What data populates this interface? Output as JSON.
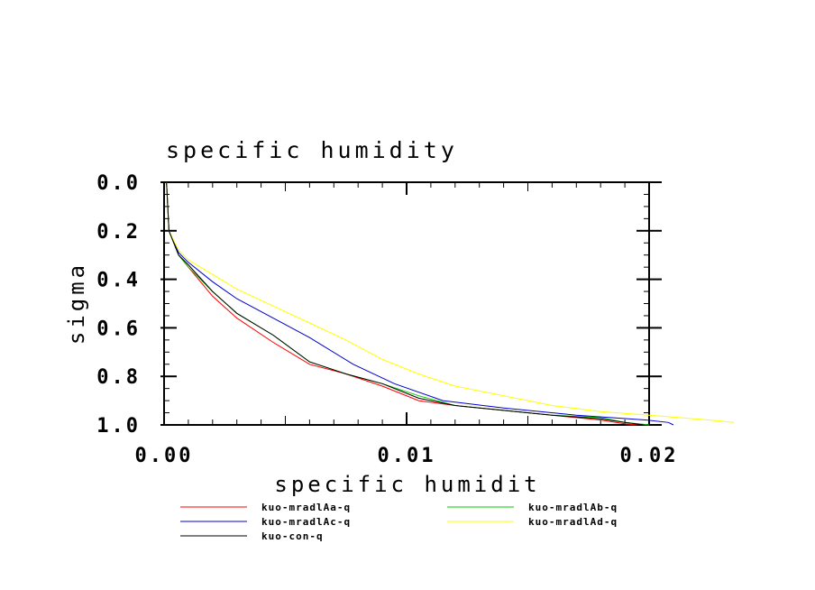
{
  "chart_data": {
    "type": "line",
    "title": "specific humidity",
    "xlabel": "specific humidit",
    "ylabel": "sigma",
    "xlim": [
      0,
      0.02
    ],
    "ylim": [
      1.0,
      0.0
    ],
    "x_ticks": [
      {
        "value": 0.0,
        "label": "0.00"
      },
      {
        "value": 0.01,
        "label": "0.01"
      },
      {
        "value": 0.02,
        "label": "0.02"
      }
    ],
    "y_ticks": [
      {
        "value": 0.0,
        "label": "0.0"
      },
      {
        "value": 0.2,
        "label": "0.2"
      },
      {
        "value": 0.4,
        "label": "0.4"
      },
      {
        "value": 0.6,
        "label": "0.6"
      },
      {
        "value": 0.8,
        "label": "0.8"
      },
      {
        "value": 1.0,
        "label": "1.0"
      }
    ],
    "grid": false,
    "legend_position": "bottom",
    "series": [
      {
        "name": "kuo-mradlAa-q",
        "color": "#ff0000",
        "points": [
          [
            0.0001,
            0.0
          ],
          [
            0.0002,
            0.2
          ],
          [
            0.0006,
            0.3
          ],
          [
            0.001,
            0.35
          ],
          [
            0.002,
            0.47
          ],
          [
            0.003,
            0.56
          ],
          [
            0.0045,
            0.66
          ],
          [
            0.006,
            0.75
          ],
          [
            0.0075,
            0.79
          ],
          [
            0.009,
            0.84
          ],
          [
            0.0105,
            0.9
          ],
          [
            0.012,
            0.92
          ],
          [
            0.014,
            0.94
          ],
          [
            0.016,
            0.96
          ],
          [
            0.018,
            0.98
          ],
          [
            0.019,
            0.995
          ],
          [
            0.0195,
            1.0
          ]
        ]
      },
      {
        "name": "kuo-mradlAb-q",
        "color": "#00cc00",
        "points": [
          [
            0.0001,
            0.0
          ],
          [
            0.0002,
            0.2
          ],
          [
            0.0006,
            0.3
          ],
          [
            0.001,
            0.35
          ],
          [
            0.002,
            0.45
          ],
          [
            0.003,
            0.54
          ],
          [
            0.0045,
            0.63
          ],
          [
            0.006,
            0.74
          ],
          [
            0.0075,
            0.79
          ],
          [
            0.009,
            0.83
          ],
          [
            0.0105,
            0.88
          ],
          [
            0.012,
            0.92
          ],
          [
            0.014,
            0.94
          ],
          [
            0.016,
            0.96
          ],
          [
            0.018,
            0.97
          ],
          [
            0.019,
            0.99
          ],
          [
            0.02,
            1.0
          ]
        ]
      },
      {
        "name": "kuo-mradlAc-q",
        "color": "#0000cc",
        "points": [
          [
            0.0001,
            0.0
          ],
          [
            0.0002,
            0.2
          ],
          [
            0.0006,
            0.29
          ],
          [
            0.001,
            0.33
          ],
          [
            0.002,
            0.41
          ],
          [
            0.003,
            0.48
          ],
          [
            0.0045,
            0.56
          ],
          [
            0.006,
            0.64
          ],
          [
            0.0078,
            0.75
          ],
          [
            0.0095,
            0.83
          ],
          [
            0.0115,
            0.9
          ],
          [
            0.014,
            0.93
          ],
          [
            0.017,
            0.96
          ],
          [
            0.0199,
            0.98
          ],
          [
            0.0208,
            0.99
          ],
          [
            0.021,
            1.0
          ]
        ]
      },
      {
        "name": "kuo-mradlAd-q",
        "color": "#ffff00",
        "points": [
          [
            0.0001,
            0.0
          ],
          [
            0.0002,
            0.2
          ],
          [
            0.0006,
            0.28
          ],
          [
            0.001,
            0.32
          ],
          [
            0.002,
            0.38
          ],
          [
            0.003,
            0.44
          ],
          [
            0.0045,
            0.51
          ],
          [
            0.006,
            0.58
          ],
          [
            0.0075,
            0.65
          ],
          [
            0.009,
            0.73
          ],
          [
            0.0105,
            0.79
          ],
          [
            0.012,
            0.84
          ],
          [
            0.014,
            0.88
          ],
          [
            0.016,
            0.92
          ],
          [
            0.018,
            0.945
          ],
          [
            0.02,
            0.96
          ],
          [
            0.0225,
            0.98
          ],
          [
            0.0235,
            0.99
          ]
        ]
      },
      {
        "name": "kuo-con-q",
        "color": "#000000",
        "points": [
          [
            0.0001,
            0.0
          ],
          [
            0.0002,
            0.2
          ],
          [
            0.0006,
            0.3
          ],
          [
            0.001,
            0.34
          ],
          [
            0.002,
            0.45
          ],
          [
            0.003,
            0.54
          ],
          [
            0.0045,
            0.63
          ],
          [
            0.006,
            0.74
          ],
          [
            0.0075,
            0.79
          ],
          [
            0.009,
            0.83
          ],
          [
            0.0105,
            0.89
          ],
          [
            0.012,
            0.92
          ],
          [
            0.014,
            0.94
          ],
          [
            0.016,
            0.96
          ],
          [
            0.018,
            0.975
          ],
          [
            0.019,
            0.99
          ],
          [
            0.0198,
            1.0
          ]
        ]
      }
    ]
  }
}
